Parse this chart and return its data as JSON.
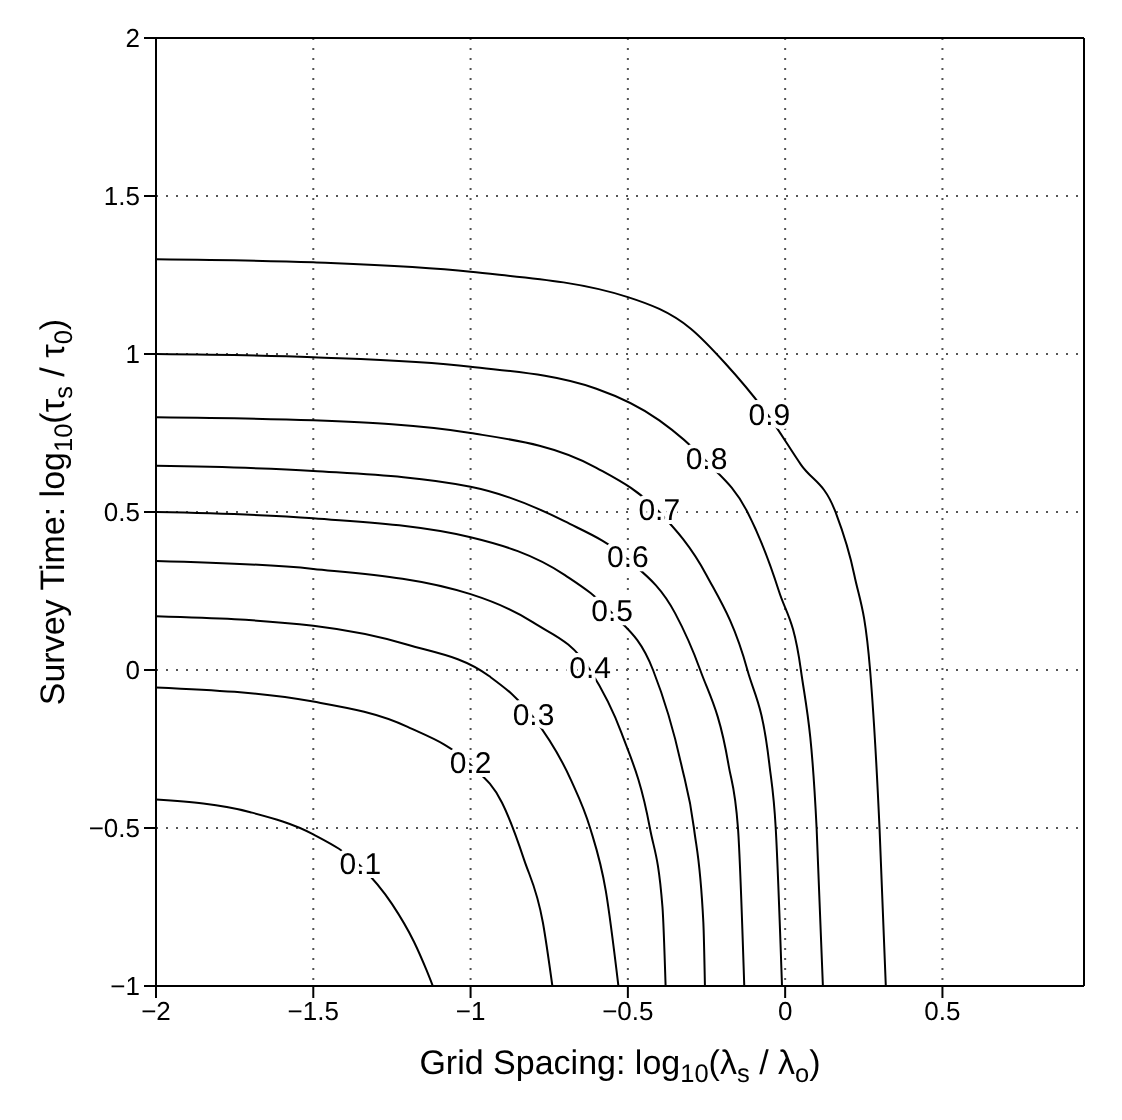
{
  "chart_data": {
    "type": "line",
    "xlabel": "Grid Spacing:  log$_{10}$(λ$_{s}$ / λ$_{o}$)",
    "ylabel": "Survey Time:  log$_{10}$(τ$_{s}$ / τ$_{0}$)",
    "xlim": [
      -2,
      0.95
    ],
    "xticks": [
      -2,
      -1.5,
      -1,
      -0.5,
      0,
      0.5
    ],
    "ylim": [
      -1,
      2
    ],
    "yticks": [
      -1,
      -0.5,
      0,
      0.5,
      1,
      1.5,
      2
    ],
    "grid": true,
    "legend": false,
    "marker": "none",
    "line_style": "solid",
    "series": [
      {
        "name": "0.1",
        "color": "#000000",
        "x": [
          -2,
          -1.7,
          -1.5,
          -1.35,
          -1.25,
          -1.18,
          -1.14,
          -1.12
        ],
        "values": [
          -0.41,
          -0.45,
          -0.52,
          -0.62,
          -0.74,
          -0.86,
          -0.95,
          -1
        ]
      },
      {
        "name": "0.2",
        "color": "#000000",
        "x": [
          -2,
          -1.5,
          -1.2,
          -1.0,
          -0.9,
          -0.83,
          -0.77,
          -0.74
        ],
        "values": [
          -0.055,
          -0.1,
          -0.18,
          -0.3,
          -0.42,
          -0.6,
          -0.8,
          -1
        ]
      },
      {
        "name": "0.3",
        "color": "#000000",
        "x": [
          -2,
          -1.5,
          -1.2,
          -0.94,
          -0.8,
          -0.68,
          -0.62,
          -0.57,
          -0.53
        ],
        "values": [
          0.17,
          0.14,
          0.08,
          -0.02,
          -0.15,
          -0.35,
          -0.5,
          -0.7,
          -1
        ]
      },
      {
        "name": "0.4",
        "color": "#000000",
        "x": [
          -2,
          -1.5,
          -1.0,
          -0.8,
          -0.62,
          -0.52,
          -0.43,
          -0.39,
          -0.38
        ],
        "values": [
          0.345,
          0.32,
          0.24,
          0.15,
          0,
          -0.2,
          -0.5,
          -0.75,
          -1
        ]
      },
      {
        "name": "0.5",
        "color": "#000000",
        "x": [
          -2,
          -1.5,
          -1.0,
          -0.7,
          -0.55,
          -0.42,
          -0.33,
          -0.29,
          -0.26,
          -0.255
        ],
        "values": [
          0.5,
          0.48,
          0.42,
          0.3,
          0.18,
          0,
          -0.3,
          -0.5,
          -0.8,
          -1
        ]
      },
      {
        "name": "0.6",
        "color": "#000000",
        "x": [
          -2,
          -1.5,
          -1.0,
          -0.7,
          -0.5,
          -0.35,
          -0.27,
          -0.18,
          -0.15,
          -0.13
        ],
        "values": [
          0.646,
          0.63,
          0.58,
          0.47,
          0.35,
          0.18,
          0,
          -0.3,
          -0.5,
          -1
        ]
      },
      {
        "name": "0.7",
        "color": "#000000",
        "x": [
          -2,
          -1.5,
          -1,
          -0.6,
          -0.4,
          -0.25,
          -0.12,
          -0.05,
          -0.03,
          -0.01
        ],
        "values": [
          0.8,
          0.79,
          0.75,
          0.64,
          0.5,
          0.3,
          0,
          -0.3,
          -0.5,
          -1
        ]
      },
      {
        "name": "0.8",
        "color": "#000000",
        "x": [
          -2,
          -1.5,
          -1,
          -0.6,
          -0.4,
          -0.25,
          -0.12,
          -0.02,
          0.05,
          0.1,
          0.12
        ],
        "values": [
          1,
          0.99,
          0.96,
          0.89,
          0.79,
          0.66,
          0.5,
          0.25,
          0,
          -0.5,
          -1
        ]
      },
      {
        "name": "0.9",
        "color": "#000000",
        "x": [
          -2,
          -1.5,
          -1,
          -0.5,
          -0.3,
          -0.19,
          -0.05,
          0.05,
          0.16,
          0.22,
          0.27,
          0.3,
          0.32
        ],
        "values": [
          1.3,
          1.29,
          1.26,
          1.18,
          1.08,
          0.97,
          0.8,
          0.65,
          0.5,
          0.3,
          0,
          -0.5,
          -1
        ]
      }
    ]
  }
}
